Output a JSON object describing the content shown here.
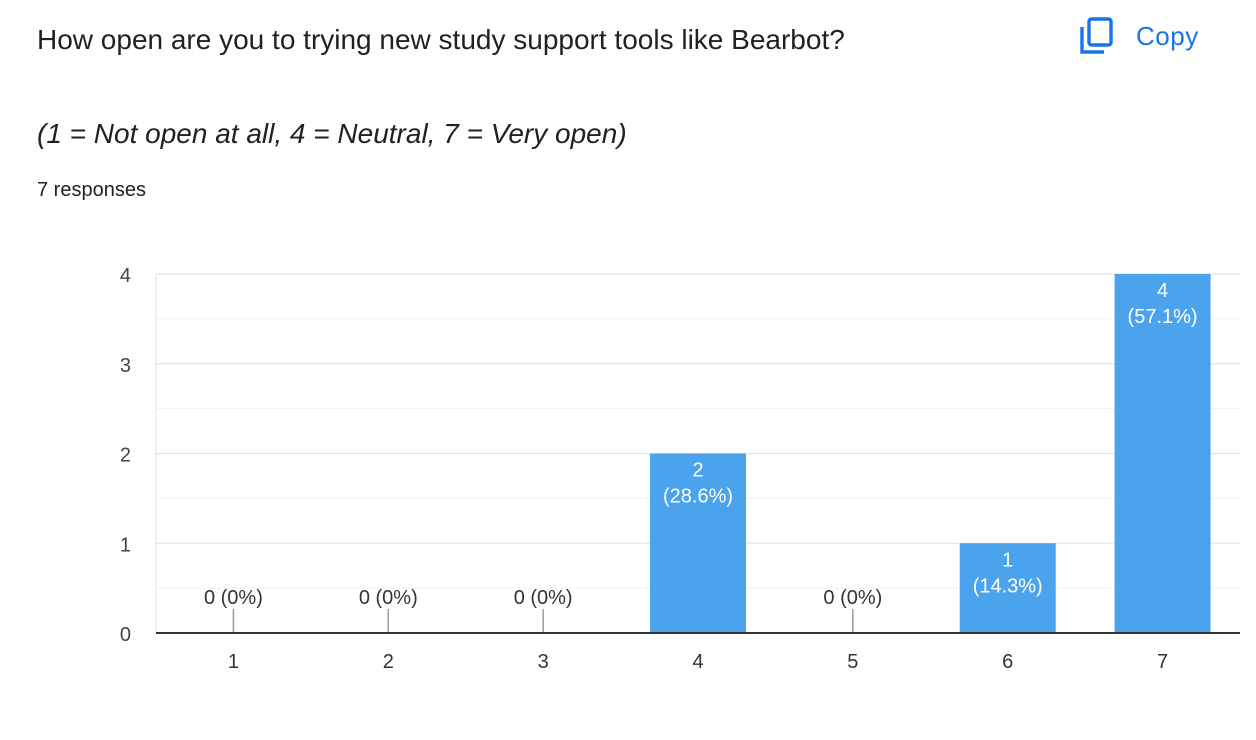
{
  "header": {
    "title": "How open are you to trying new study support tools like Bearbot?",
    "subtitle": "(1 = Not open at all, 4 = Neutral, 7 = Very open)",
    "responses": "7 responses",
    "copy_label": "Copy",
    "copy_icon": "copy-icon"
  },
  "colors": {
    "bar": "#4ba3ee",
    "accent": "#1a73e8"
  },
  "chart_data": {
    "type": "bar",
    "categories": [
      "1",
      "2",
      "3",
      "4",
      "5",
      "6",
      "7"
    ],
    "values": [
      0,
      0,
      0,
      2,
      0,
      1,
      4
    ],
    "labels": [
      "0 (0%)",
      "0 (0%)",
      "0 (0%)",
      "2\n(28.6%)",
      "0 (0%)",
      "1\n(14.3%)",
      "4\n(57.1%)"
    ],
    "yticks": [
      "0",
      "1",
      "2",
      "3",
      "4"
    ],
    "ylim": [
      0,
      4
    ],
    "xlabel": "",
    "ylabel": "",
    "grid": true,
    "legend": "none"
  }
}
